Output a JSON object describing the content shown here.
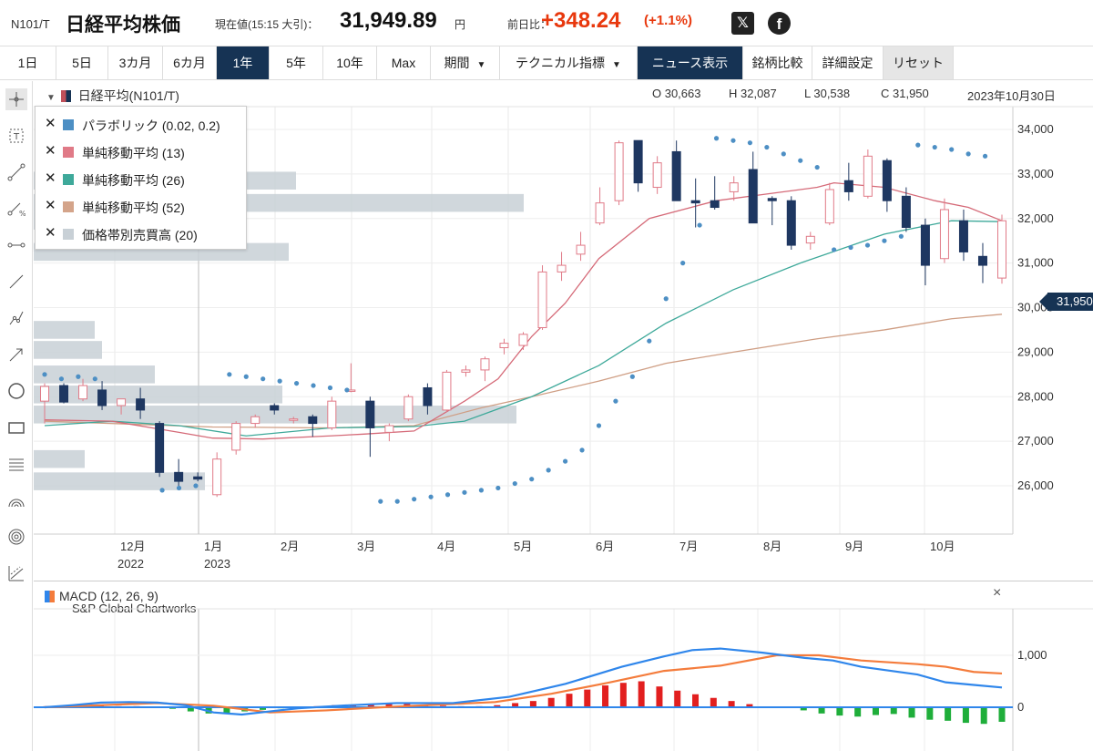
{
  "header": {
    "code": "N101/T",
    "name": "日経平均株価",
    "price_label": "現在値(15:15 大引)：",
    "price": "31,949.89",
    "price_unit": "円",
    "change_label": "前日比：",
    "change": "+348.24",
    "change_pct": "(+1.1%)",
    "share_x": "𝕏",
    "share_fb": "f"
  },
  "toolbar": {
    "buttons": [
      {
        "label": "1日"
      },
      {
        "label": "5日"
      },
      {
        "label": "3カ月"
      },
      {
        "label": "6カ月"
      },
      {
        "label": "1年",
        "active": true
      },
      {
        "label": "5年"
      },
      {
        "label": "10年"
      },
      {
        "label": "Max"
      },
      {
        "label": "期間"
      },
      {
        "label": "テクニカル指標"
      },
      {
        "label": "ニュース表示",
        "active": true
      },
      {
        "label": "銘柄比較"
      },
      {
        "label": "詳細設定"
      },
      {
        "label": "リセット",
        "muted": true
      }
    ]
  },
  "tools": [
    "crosshair-icon",
    "text-icon",
    "line-icon",
    "percent-line-icon",
    "horizontal-range-icon",
    "trend-line-icon",
    "polyline-icon",
    "arrow-icon",
    "circle-icon",
    "rectangle-icon",
    "fibonacci-icon",
    "arc-icon",
    "concentric-circle-icon",
    "regression-icon"
  ],
  "chart": {
    "instrument": "日経平均(N101/T)",
    "open": "O 30,663",
    "high": "H 32,087",
    "low": "L 30,538",
    "close": "C 31,950",
    "date": "2023年10月30日",
    "last_tag": "31,950",
    "credit": "S&P Global Chartworks",
    "legend": [
      {
        "label": "パラボリック (0.02, 0.2)",
        "color": "#4d8fc4"
      },
      {
        "label": "単純移動平均 (13)",
        "color": "#e07a87"
      },
      {
        "label": "単純移動平均 (26)",
        "color": "#3ea99a"
      },
      {
        "label": "単純移動平均 (52)",
        "color": "#d4a48a"
      },
      {
        "label": "価格帯別売買高 (20)",
        "color": "#c8d0d6"
      }
    ],
    "y_ticks": [
      "34,000",
      "33,000",
      "32,000",
      "31,000",
      "30,000",
      "29,000",
      "28,000",
      "27,000",
      "26,000"
    ],
    "x_months": [
      "12月",
      "1月",
      "2月",
      "3月",
      "4月",
      "5月",
      "6月",
      "7月",
      "8月",
      "9月",
      "10月"
    ],
    "x_years": [
      "2022",
      "2023"
    ],
    "colors": {
      "up": "#e07a87",
      "down": "#1e3761",
      "sar": "#4d8fc4",
      "ma13": "#d56a78",
      "ma26": "#3ea99a",
      "ma52": "#cf9e84"
    }
  },
  "chart_data": {
    "type": "candlestick",
    "title": "日経平均(N101/T)",
    "ylim": [
      25000,
      34300
    ],
    "candles": [
      {
        "o": 27900,
        "h": 28300,
        "l": 27400,
        "c": 28230
      },
      {
        "o": 28250,
        "h": 28300,
        "l": 27850,
        "c": 27880
      },
      {
        "o": 27950,
        "h": 28400,
        "l": 27900,
        "c": 28250
      },
      {
        "o": 28150,
        "h": 28350,
        "l": 27700,
        "c": 27800
      },
      {
        "o": 27800,
        "h": 27950,
        "l": 27600,
        "c": 27950
      },
      {
        "o": 27950,
        "h": 28200,
        "l": 27500,
        "c": 27700
      },
      {
        "o": 27400,
        "h": 27450,
        "l": 26200,
        "c": 26300
      },
      {
        "o": 26300,
        "h": 26600,
        "l": 26000,
        "c": 26100
      },
      {
        "o": 26200,
        "h": 26300,
        "l": 26100,
        "c": 26150
      },
      {
        "o": 25800,
        "h": 26750,
        "l": 25750,
        "c": 26600
      },
      {
        "o": 26800,
        "h": 27450,
        "l": 26700,
        "c": 27400
      },
      {
        "o": 27400,
        "h": 27600,
        "l": 27300,
        "c": 27550
      },
      {
        "o": 27800,
        "h": 27850,
        "l": 27600,
        "c": 27700
      },
      {
        "o": 27500,
        "h": 27550,
        "l": 27400,
        "c": 27500
      },
      {
        "o": 27550,
        "h": 27600,
        "l": 27100,
        "c": 27400
      },
      {
        "o": 27300,
        "h": 28000,
        "l": 27250,
        "c": 27900
      },
      {
        "o": 28150,
        "h": 28750,
        "l": 28100,
        "c": 28150
      },
      {
        "o": 27900,
        "h": 28000,
        "l": 26650,
        "c": 27300
      },
      {
        "o": 27200,
        "h": 27400,
        "l": 27000,
        "c": 27350
      },
      {
        "o": 27500,
        "h": 28050,
        "l": 27450,
        "c": 28000
      },
      {
        "o": 28200,
        "h": 28300,
        "l": 27600,
        "c": 27800
      },
      {
        "o": 27700,
        "h": 28600,
        "l": 27650,
        "c": 28550
      },
      {
        "o": 28550,
        "h": 28700,
        "l": 28450,
        "c": 28600
      },
      {
        "o": 28600,
        "h": 28900,
        "l": 28350,
        "c": 28850
      },
      {
        "o": 29100,
        "h": 29300,
        "l": 28950,
        "c": 29200
      },
      {
        "o": 29150,
        "h": 29450,
        "l": 29050,
        "c": 29400
      },
      {
        "o": 29550,
        "h": 30950,
        "l": 29500,
        "c": 30800
      },
      {
        "o": 30800,
        "h": 31250,
        "l": 30600,
        "c": 30950
      },
      {
        "o": 31200,
        "h": 31700,
        "l": 31050,
        "c": 31400
      },
      {
        "o": 31900,
        "h": 32700,
        "l": 31850,
        "c": 32350
      },
      {
        "o": 32400,
        "h": 33750,
        "l": 32300,
        "c": 33700
      },
      {
        "o": 33750,
        "h": 33750,
        "l": 32600,
        "c": 32800
      },
      {
        "o": 32700,
        "h": 33400,
        "l": 32550,
        "c": 33250
      },
      {
        "o": 33500,
        "h": 33750,
        "l": 32400,
        "c": 32400
      },
      {
        "o": 32400,
        "h": 32900,
        "l": 31800,
        "c": 32350
      },
      {
        "o": 32400,
        "h": 32950,
        "l": 32200,
        "c": 32250
      },
      {
        "o": 32600,
        "h": 32950,
        "l": 32400,
        "c": 32800
      },
      {
        "o": 33100,
        "h": 33500,
        "l": 31900,
        "c": 31900
      },
      {
        "o": 32450,
        "h": 32500,
        "l": 31850,
        "c": 32400
      },
      {
        "o": 32400,
        "h": 32500,
        "l": 31300,
        "c": 31400
      },
      {
        "o": 31450,
        "h": 31700,
        "l": 31300,
        "c": 31600
      },
      {
        "o": 31900,
        "h": 32800,
        "l": 31850,
        "c": 32650
      },
      {
        "o": 32850,
        "h": 33250,
        "l": 32400,
        "c": 32600
      },
      {
        "o": 32500,
        "h": 33550,
        "l": 32450,
        "c": 33400
      },
      {
        "o": 33300,
        "h": 33350,
        "l": 32150,
        "c": 32400
      },
      {
        "o": 32500,
        "h": 32700,
        "l": 31700,
        "c": 31800
      },
      {
        "o": 31850,
        "h": 32000,
        "l": 30500,
        "c": 30950
      },
      {
        "o": 31100,
        "h": 32450,
        "l": 31000,
        "c": 32200
      },
      {
        "o": 31950,
        "h": 32200,
        "l": 31050,
        "c": 31250
      },
      {
        "o": 31150,
        "h": 31450,
        "l": 30550,
        "c": 30950
      },
      {
        "o": 30663,
        "h": 32087,
        "l": 30538,
        "c": 31950
      }
    ],
    "sar": [
      [
        0,
        28500
      ],
      [
        1,
        28400
      ],
      [
        2,
        28450
      ],
      [
        3,
        28400
      ],
      [
        7,
        25900
      ],
      [
        8,
        25950
      ],
      [
        9,
        26000
      ],
      [
        11,
        28500
      ],
      [
        12,
        28450
      ],
      [
        13,
        28400
      ],
      [
        14,
        28350
      ],
      [
        15,
        28300
      ],
      [
        16,
        28250
      ],
      [
        17,
        28200
      ],
      [
        18,
        28150
      ],
      [
        20,
        25650
      ],
      [
        21,
        25650
      ],
      [
        22,
        25700
      ],
      [
        23,
        25750
      ],
      [
        24,
        25800
      ],
      [
        25,
        25850
      ],
      [
        26,
        25900
      ],
      [
        27,
        25950
      ],
      [
        28,
        26050
      ],
      [
        29,
        26150
      ],
      [
        30,
        26350
      ],
      [
        31,
        26550
      ],
      [
        32,
        26800
      ],
      [
        33,
        27350
      ],
      [
        34,
        27900
      ],
      [
        35,
        28450
      ],
      [
        36,
        29250
      ],
      [
        37,
        30200
      ],
      [
        38,
        31000
      ],
      [
        39,
        31850
      ],
      [
        40,
        33800
      ],
      [
        41,
        33750
      ],
      [
        42,
        33700
      ],
      [
        43,
        33600
      ],
      [
        44,
        33450
      ],
      [
        45,
        33300
      ],
      [
        46,
        33150
      ],
      [
        47,
        31300
      ],
      [
        48,
        31350
      ],
      [
        49,
        31400
      ],
      [
        50,
        31500
      ],
      [
        51,
        31600
      ],
      [
        52,
        33650
      ],
      [
        53,
        33600
      ],
      [
        54,
        33550
      ],
      [
        55,
        33450
      ],
      [
        56,
        33400
      ]
    ],
    "ma13": [
      [
        0,
        27480
      ],
      [
        4,
        27450
      ],
      [
        8,
        27200
      ],
      [
        10,
        27070
      ],
      [
        13,
        27050
      ],
      [
        17,
        27120
      ],
      [
        19,
        27160
      ],
      [
        22,
        27230
      ],
      [
        25,
        27900
      ],
      [
        27,
        28400
      ],
      [
        29,
        29350
      ],
      [
        31,
        30100
      ],
      [
        33,
        31100
      ],
      [
        36,
        32000
      ],
      [
        40,
        32400
      ],
      [
        43,
        32550
      ],
      [
        46,
        32700
      ],
      [
        47,
        32800
      ],
      [
        50,
        32700
      ],
      [
        53,
        32400
      ],
      [
        55,
        32250
      ],
      [
        57,
        31950
      ]
    ],
    "ma26": [
      [
        0,
        27350
      ],
      [
        4,
        27450
      ],
      [
        8,
        27350
      ],
      [
        12,
        27120
      ],
      [
        17,
        27300
      ],
      [
        22,
        27330
      ],
      [
        25,
        27450
      ],
      [
        29,
        28000
      ],
      [
        33,
        28700
      ],
      [
        37,
        29650
      ],
      [
        41,
        30400
      ],
      [
        45,
        31000
      ],
      [
        50,
        31650
      ],
      [
        54,
        31950
      ],
      [
        57,
        31930
      ]
    ],
    "ma52": [
      [
        0,
        27450
      ],
      [
        10,
        27320
      ],
      [
        17,
        27300
      ],
      [
        22,
        27350
      ],
      [
        26,
        27750
      ],
      [
        29,
        28000
      ],
      [
        33,
        28350
      ],
      [
        37,
        28750
      ],
      [
        41,
        29000
      ],
      [
        46,
        29300
      ],
      [
        50,
        29500
      ],
      [
        54,
        29750
      ],
      [
        57,
        29850
      ]
    ],
    "volume_profile": [
      {
        "y0": 33050,
        "y1": 32650,
        "w": 288
      },
      {
        "y0": 32550,
        "y1": 32150,
        "w": 538
      },
      {
        "y0": 32150,
        "y1": 31750,
        "w": 233
      },
      {
        "y0": 31450,
        "y1": 31050,
        "w": 280
      },
      {
        "y0": 29700,
        "y1": 29300,
        "w": 67
      },
      {
        "y0": 29250,
        "y1": 28850,
        "w": 75
      },
      {
        "y0": 28700,
        "y1": 28300,
        "w": 133
      },
      {
        "y0": 28250,
        "y1": 27850,
        "w": 273
      },
      {
        "y0": 27800,
        "y1": 27400,
        "w": 530
      },
      {
        "y0": 26800,
        "y1": 26400,
        "w": 56
      },
      {
        "y0": 26300,
        "y1": 25900,
        "w": 188
      }
    ]
  },
  "macd": {
    "title": "MACD (12, 26, 9)",
    "close": "×",
    "y_ticks": [
      "1,000",
      "0"
    ],
    "colors": {
      "macd": "#2f86eb",
      "signal": "#f47c3c",
      "pos": "#e21f1f",
      "neg": "#1fae3a",
      "zero": "#2f86eb"
    },
    "macd_line": [
      [
        0,
        0
      ],
      [
        2,
        40
      ],
      [
        4,
        90
      ],
      [
        6,
        100
      ],
      [
        8,
        90
      ],
      [
        10,
        40
      ],
      [
        12,
        -100
      ],
      [
        14,
        -140
      ],
      [
        16,
        -80
      ],
      [
        18,
        -20
      ],
      [
        21,
        30
      ],
      [
        25,
        80
      ],
      [
        29,
        80
      ],
      [
        33,
        200
      ],
      [
        37,
        450
      ],
      [
        41,
        780
      ],
      [
        44,
        980
      ],
      [
        46,
        1100
      ],
      [
        48,
        1130
      ],
      [
        51,
        1050
      ],
      [
        54,
        950
      ],
      [
        56,
        900
      ],
      [
        58,
        780
      ],
      [
        62,
        630
      ],
      [
        64,
        480
      ],
      [
        66,
        430
      ],
      [
        68,
        380
      ]
    ],
    "signal_line": [
      [
        0,
        0
      ],
      [
        4,
        40
      ],
      [
        8,
        80
      ],
      [
        12,
        30
      ],
      [
        16,
        -100
      ],
      [
        20,
        -60
      ],
      [
        24,
        0
      ],
      [
        28,
        50
      ],
      [
        32,
        100
      ],
      [
        36,
        260
      ],
      [
        40,
        470
      ],
      [
        44,
        700
      ],
      [
        48,
        800
      ],
      [
        52,
        1000
      ],
      [
        55,
        1000
      ],
      [
        58,
        900
      ],
      [
        62,
        830
      ],
      [
        64,
        780
      ],
      [
        66,
        680
      ],
      [
        68,
        650
      ]
    ],
    "hist": [
      20,
      10,
      20,
      30,
      20,
      20,
      10,
      -30,
      -80,
      -120,
      -110,
      -80,
      -50,
      -20,
      0,
      20,
      40,
      50,
      60,
      70,
      70,
      50,
      30,
      20,
      20,
      40,
      80,
      120,
      180,
      260,
      340,
      420,
      470,
      500,
      400,
      320,
      250,
      180,
      120,
      60,
      10,
      -10,
      -60,
      -120,
      -160,
      -180,
      -150,
      -130,
      -200,
      -240,
      -260,
      -300,
      -320,
      -280
    ]
  }
}
